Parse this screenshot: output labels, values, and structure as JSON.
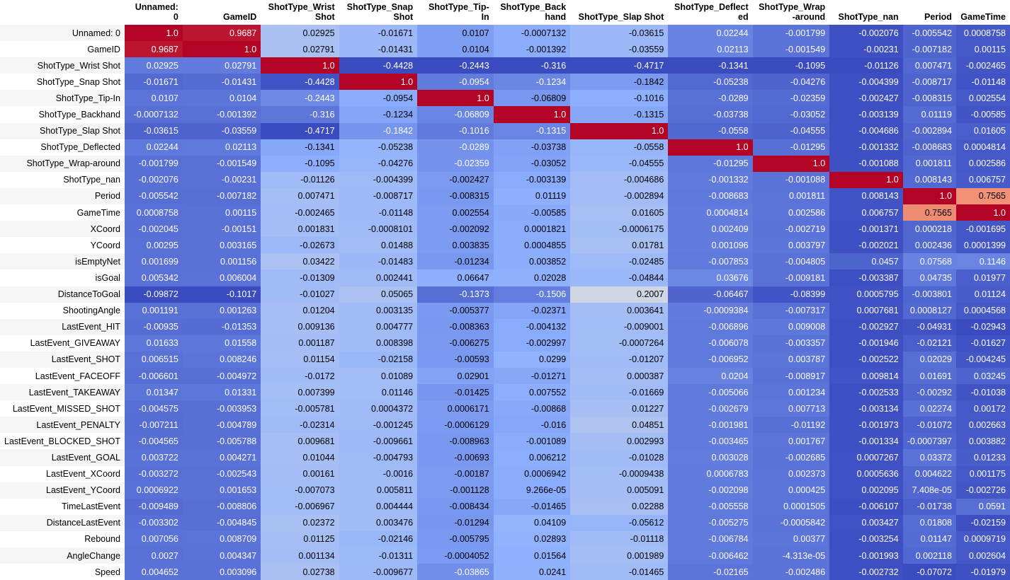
{
  "columns": [
    "Unnamed: 0",
    "GameID",
    "ShotType_Wrist Shot",
    "ShotType_Snap Shot",
    "ShotType_Tip-In",
    "ShotType_Backhand",
    "ShotType_Slap Shot",
    "ShotType_Deflected",
    "ShotType_Wrap-around",
    "ShotType_nan",
    "Period",
    "GameTime"
  ],
  "rows": [
    {
      "label": "Unnamed: 0",
      "values": [
        "1.0",
        "0.9687",
        "0.02925",
        "-0.01671",
        "0.0107",
        "-0.0007132",
        "-0.03615",
        "0.02244",
        "-0.001799",
        "-0.002076",
        "-0.005542",
        "0.0008758"
      ]
    },
    {
      "label": "GameID",
      "values": [
        "0.9687",
        "1.0",
        "0.02791",
        "-0.01431",
        "0.0104",
        "-0.001392",
        "-0.03559",
        "0.02113",
        "-0.001549",
        "-0.00231",
        "-0.007182",
        "0.00115"
      ]
    },
    {
      "label": "ShotType_Wrist Shot",
      "values": [
        "0.02925",
        "0.02791",
        "1.0",
        "-0.4428",
        "-0.2443",
        "-0.316",
        "-0.4717",
        "-0.1341",
        "-0.1095",
        "-0.01126",
        "0.007471",
        "-0.002465"
      ]
    },
    {
      "label": "ShotType_Snap Shot",
      "values": [
        "-0.01671",
        "-0.01431",
        "-0.4428",
        "1.0",
        "-0.0954",
        "-0.1234",
        "-0.1842",
        "-0.05238",
        "-0.04276",
        "-0.004399",
        "-0.008717",
        "-0.01148"
      ]
    },
    {
      "label": "ShotType_Tip-In",
      "values": [
        "0.0107",
        "0.0104",
        "-0.2443",
        "-0.0954",
        "1.0",
        "-0.06809",
        "-0.1016",
        "-0.0289",
        "-0.02359",
        "-0.002427",
        "-0.008315",
        "0.002554"
      ]
    },
    {
      "label": "ShotType_Backhand",
      "values": [
        "-0.0007132",
        "-0.001392",
        "-0.316",
        "-0.1234",
        "-0.06809",
        "1.0",
        "-0.1315",
        "-0.03738",
        "-0.03052",
        "-0.003139",
        "0.01119",
        "-0.00585"
      ]
    },
    {
      "label": "ShotType_Slap Shot",
      "values": [
        "-0.03615",
        "-0.03559",
        "-0.4717",
        "-0.1842",
        "-0.1016",
        "-0.1315",
        "1.0",
        "-0.0558",
        "-0.04555",
        "-0.004686",
        "-0.002894",
        "0.01605"
      ]
    },
    {
      "label": "ShotType_Deflected",
      "values": [
        "0.02244",
        "0.02113",
        "-0.1341",
        "-0.05238",
        "-0.0289",
        "-0.03738",
        "-0.0558",
        "1.0",
        "-0.01295",
        "-0.001332",
        "-0.008683",
        "0.0004814"
      ]
    },
    {
      "label": "ShotType_Wrap-around",
      "values": [
        "-0.001799",
        "-0.001549",
        "-0.1095",
        "-0.04276",
        "-0.02359",
        "-0.03052",
        "-0.04555",
        "-0.01295",
        "1.0",
        "-0.001088",
        "0.001811",
        "0.002586"
      ]
    },
    {
      "label": "ShotType_nan",
      "values": [
        "-0.002076",
        "-0.00231",
        "-0.01126",
        "-0.004399",
        "-0.002427",
        "-0.003139",
        "-0.004686",
        "-0.001332",
        "-0.001088",
        "1.0",
        "0.008143",
        "0.006757"
      ]
    },
    {
      "label": "Period",
      "values": [
        "-0.005542",
        "-0.007182",
        "0.007471",
        "-0.008717",
        "-0.008315",
        "0.01119",
        "-0.002894",
        "-0.008683",
        "0.001811",
        "0.008143",
        "1.0",
        "0.7565"
      ]
    },
    {
      "label": "GameTime",
      "values": [
        "0.0008758",
        "0.00115",
        "-0.002465",
        "-0.01148",
        "0.002554",
        "-0.00585",
        "0.01605",
        "0.0004814",
        "0.002586",
        "0.006757",
        "0.7565",
        "1.0"
      ]
    },
    {
      "label": "XCoord",
      "values": [
        "-0.002045",
        "-0.00151",
        "0.001831",
        "-0.0008101",
        "-0.002092",
        "0.0001821",
        "-0.0006175",
        "0.002409",
        "-0.002719",
        "-0.001371",
        "0.000218",
        "-0.001695"
      ]
    },
    {
      "label": "YCoord",
      "values": [
        "0.00295",
        "0.003165",
        "-0.02673",
        "0.01488",
        "0.003835",
        "0.0004855",
        "0.01781",
        "0.001096",
        "0.003797",
        "-0.002021",
        "0.002436",
        "0.0001399"
      ]
    },
    {
      "label": "isEmptyNet",
      "values": [
        "0.001699",
        "0.001156",
        "0.03422",
        "-0.01483",
        "-0.01234",
        "0.003852",
        "-0.02485",
        "-0.007853",
        "-0.004805",
        "0.0457",
        "0.07568",
        "0.1146"
      ]
    },
    {
      "label": "isGoal",
      "values": [
        "0.005342",
        "0.006004",
        "-0.01309",
        "0.002441",
        "0.06647",
        "0.02028",
        "-0.04844",
        "0.03676",
        "-0.009181",
        "-0.003387",
        "0.04735",
        "0.01977"
      ]
    },
    {
      "label": "DistanceToGoal",
      "values": [
        "-0.09872",
        "-0.1017",
        "-0.01027",
        "0.05065",
        "-0.1373",
        "-0.1506",
        "0.2007",
        "-0.06467",
        "-0.08399",
        "0.0005795",
        "-0.003801",
        "0.01124"
      ]
    },
    {
      "label": "ShootingAngle",
      "values": [
        "0.001191",
        "0.001263",
        "0.01204",
        "0.003135",
        "-0.005377",
        "-0.02371",
        "0.003641",
        "-0.0009384",
        "-0.007317",
        "0.0007681",
        "0.0008127",
        "0.0004568"
      ]
    },
    {
      "label": "LastEvent_HIT",
      "values": [
        "-0.00935",
        "-0.01353",
        "0.009136",
        "0.004777",
        "-0.008363",
        "-0.004132",
        "-0.009001",
        "-0.006896",
        "0.009008",
        "-0.002927",
        "-0.04931",
        "-0.02943"
      ]
    },
    {
      "label": "LastEvent_GIVEAWAY",
      "values": [
        "0.01633",
        "0.01558",
        "0.001187",
        "0.008398",
        "-0.006275",
        "-0.002997",
        "-0.0007264",
        "-0.006078",
        "-0.003357",
        "-0.001946",
        "-0.02121",
        "-0.01627"
      ]
    },
    {
      "label": "LastEvent_SHOT",
      "values": [
        "0.006515",
        "0.008246",
        "0.01154",
        "-0.02158",
        "-0.00593",
        "0.0299",
        "-0.01207",
        "-0.006952",
        "0.003787",
        "-0.002522",
        "0.02029",
        "-0.004245"
      ]
    },
    {
      "label": "LastEvent_FACEOFF",
      "values": [
        "-0.006601",
        "-0.004972",
        "-0.0172",
        "0.01089",
        "0.02901",
        "-0.01271",
        "0.000387",
        "0.0204",
        "-0.008917",
        "0.009814",
        "0.01691",
        "0.03245"
      ]
    },
    {
      "label": "LastEvent_TAKEAWAY",
      "values": [
        "0.01347",
        "0.01331",
        "0.007399",
        "0.01146",
        "-0.01425",
        "0.007552",
        "-0.01669",
        "-0.005066",
        "0.001234",
        "-0.002533",
        "-0.00292",
        "-0.01038"
      ]
    },
    {
      "label": "LastEvent_MISSED_SHOT",
      "values": [
        "-0.004575",
        "-0.003953",
        "-0.005781",
        "0.0004372",
        "0.0006171",
        "-0.00868",
        "0.01227",
        "-0.002679",
        "0.007713",
        "-0.003134",
        "0.02274",
        "0.00172"
      ]
    },
    {
      "label": "LastEvent_PENALTY",
      "values": [
        "-0.007211",
        "-0.004789",
        "-0.02314",
        "-0.001245",
        "-0.0006129",
        "-0.016",
        "0.04851",
        "-0.001981",
        "-0.01192",
        "-0.001973",
        "-0.01072",
        "0.002663"
      ]
    },
    {
      "label": "LastEvent_BLOCKED_SHOT",
      "values": [
        "-0.004565",
        "-0.005788",
        "0.009681",
        "-0.009661",
        "-0.008963",
        "-0.001089",
        "0.002993",
        "-0.003465",
        "0.001767",
        "-0.001334",
        "-0.0007397",
        "0.003882"
      ]
    },
    {
      "label": "LastEvent_GOAL",
      "values": [
        "0.003722",
        "0.004271",
        "0.01044",
        "-0.004793",
        "-0.00693",
        "0.006212",
        "-0.01028",
        "0.003028",
        "-0.002685",
        "0.0007267",
        "0.03372",
        "0.01233"
      ]
    },
    {
      "label": "LastEvent_XCoord",
      "values": [
        "-0.003272",
        "-0.002543",
        "0.00161",
        "-0.0016",
        "-0.00187",
        "0.0006942",
        "-0.0009438",
        "0.0006783",
        "0.002373",
        "0.0005636",
        "0.004622",
        "0.001175"
      ]
    },
    {
      "label": "LastEvent_YCoord",
      "values": [
        "0.0006922",
        "0.001653",
        "-0.007073",
        "0.005811",
        "-0.001128",
        "9.266e-05",
        "0.005091",
        "-0.002098",
        "0.000425",
        "0.002095",
        "7.408e-05",
        "-0.002726"
      ]
    },
    {
      "label": "TimeLastEvent",
      "values": [
        "-0.009489",
        "-0.008806",
        "-0.006967",
        "0.004444",
        "-0.008434",
        "-0.01465",
        "0.02288",
        "-0.005558",
        "0.0001505",
        "-0.006107",
        "-0.01738",
        "0.0591"
      ]
    },
    {
      "label": "DistanceLastEvent",
      "values": [
        "-0.003302",
        "-0.004845",
        "0.02372",
        "0.003476",
        "-0.01294",
        "0.04109",
        "-0.05612",
        "-0.005275",
        "-0.0005842",
        "0.003427",
        "0.01808",
        "-0.02159"
      ]
    },
    {
      "label": "Rebound",
      "values": [
        "0.007056",
        "0.008709",
        "0.01125",
        "-0.02146",
        "-0.005795",
        "0.02893",
        "-0.01118",
        "-0.006784",
        "0.00377",
        "-0.003254",
        "0.01147",
        "0.0009719"
      ]
    },
    {
      "label": "AngleChange",
      "values": [
        "0.0027",
        "0.004347",
        "0.001134",
        "-0.01311",
        "-0.0004052",
        "0.01564",
        "0.001989",
        "-0.006462",
        "-4.313e-05",
        "-0.001993",
        "0.002118",
        "0.002604"
      ]
    },
    {
      "label": "Speed",
      "values": [
        "0.004652",
        "0.003096",
        "0.02738",
        "-0.009677",
        "-0.03865",
        "0.0241",
        "-0.01465",
        "-0.02165",
        "-0.002486",
        "-0.002732",
        "-0.07072",
        "-0.01979"
      ]
    }
  ]
}
